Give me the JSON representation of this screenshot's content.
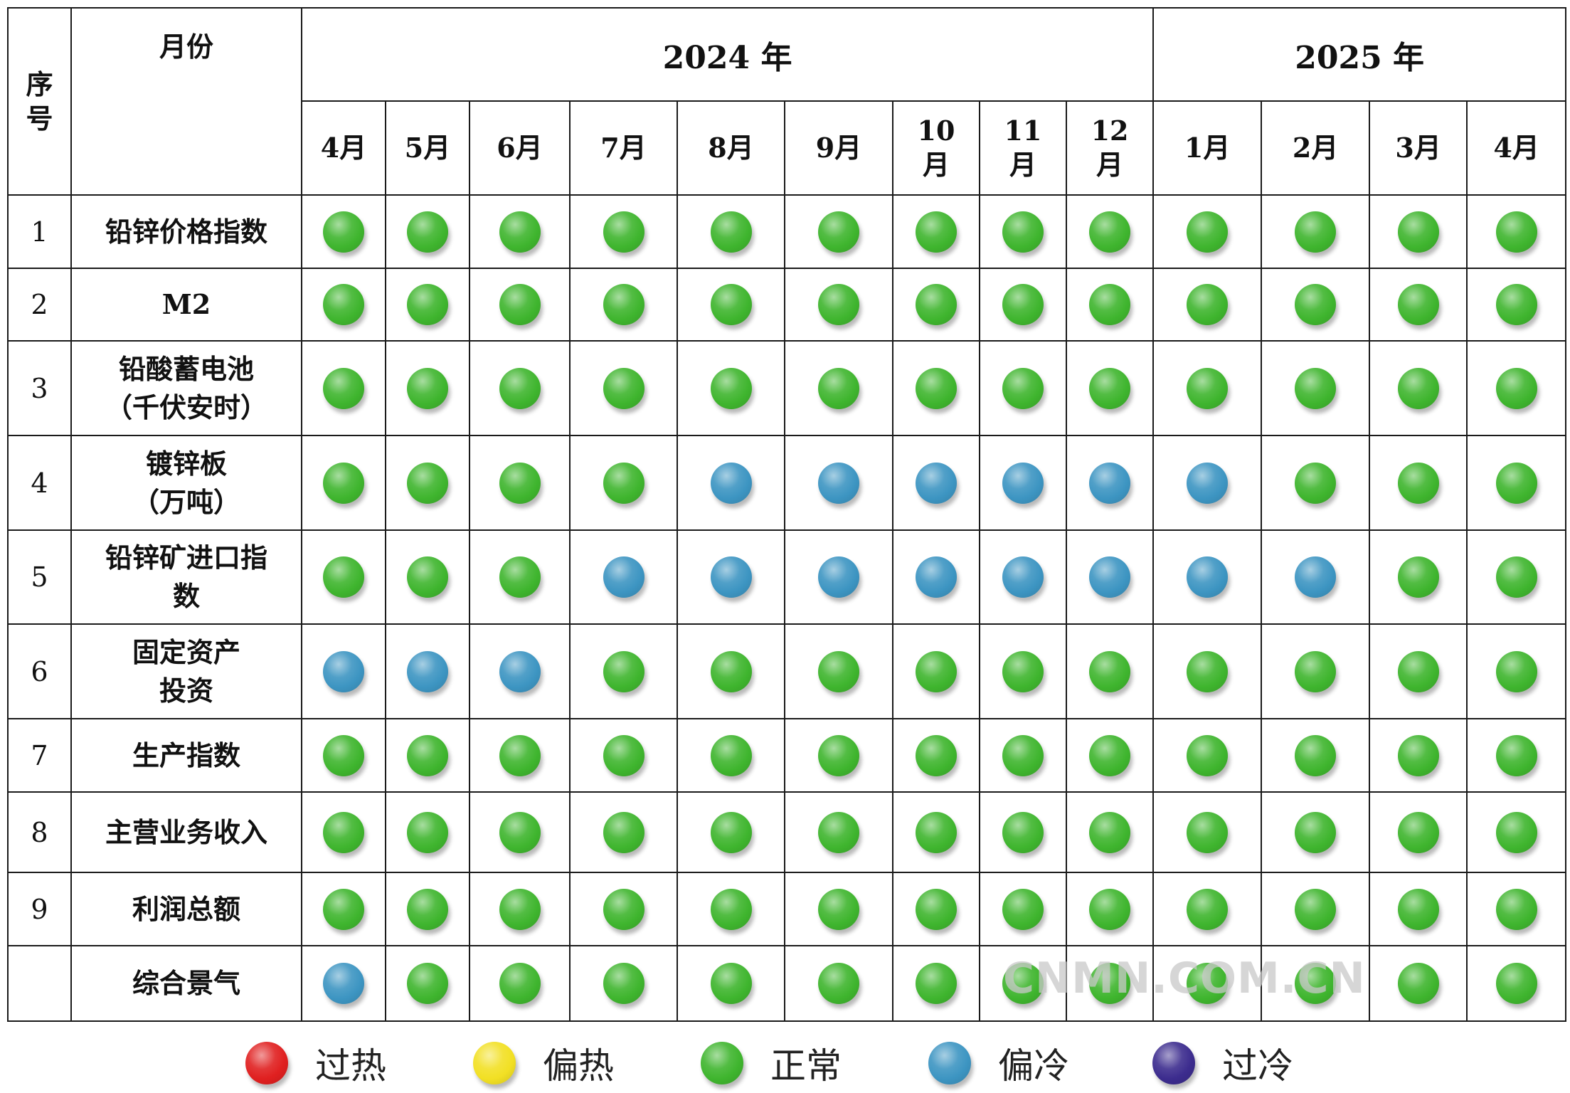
{
  "header": {
    "seq_label": "序号",
    "month_label": "月份",
    "years": [
      {
        "label": "2024 年",
        "span": 9
      },
      {
        "label": "2025 年",
        "span": 4
      }
    ],
    "months": [
      "4月",
      "5月",
      "6月",
      "7月",
      "8月",
      "9月",
      "10月",
      "11月",
      "12月",
      "1月",
      "2月",
      "3月",
      "4月"
    ]
  },
  "status_colors": {
    "过热": "#e02020",
    "偏热": "#f2e024",
    "正常": "#3fb52e",
    "偏冷": "#3d95c2",
    "过冷": "#3c2c8e"
  },
  "legend": [
    {
      "label": "过热",
      "key": "过热"
    },
    {
      "label": "偏热",
      "key": "偏热"
    },
    {
      "label": "正常",
      "key": "正常"
    },
    {
      "label": "偏冷",
      "key": "偏冷"
    },
    {
      "label": "过冷",
      "key": "过冷"
    }
  ],
  "watermark": "CNMN.COM.CN",
  "chart_data": {
    "type": "table",
    "columns": [
      "2024-04",
      "2024-05",
      "2024-06",
      "2024-07",
      "2024-08",
      "2024-09",
      "2024-10",
      "2024-11",
      "2024-12",
      "2025-01",
      "2025-02",
      "2025-03",
      "2025-04"
    ],
    "rows": [
      {
        "seq": "1",
        "name": "铅锌价格指数",
        "values": [
          "正常",
          "正常",
          "正常",
          "正常",
          "正常",
          "正常",
          "正常",
          "正常",
          "正常",
          "正常",
          "正常",
          "正常",
          "正常"
        ]
      },
      {
        "seq": "2",
        "name": "M2",
        "values": [
          "正常",
          "正常",
          "正常",
          "正常",
          "正常",
          "正常",
          "正常",
          "正常",
          "正常",
          "正常",
          "正常",
          "正常",
          "正常"
        ]
      },
      {
        "seq": "3",
        "name": "铅酸蓄电池\n（千伏安时）",
        "values": [
          "正常",
          "正常",
          "正常",
          "正常",
          "正常",
          "正常",
          "正常",
          "正常",
          "正常",
          "正常",
          "正常",
          "正常",
          "正常"
        ]
      },
      {
        "seq": "4",
        "name": "镀锌板\n（万吨）",
        "values": [
          "正常",
          "正常",
          "正常",
          "正常",
          "偏冷",
          "偏冷",
          "偏冷",
          "偏冷",
          "偏冷",
          "偏冷",
          "正常",
          "正常",
          "正常"
        ]
      },
      {
        "seq": "5",
        "name": "铅锌矿进口指\n数",
        "values": [
          "正常",
          "正常",
          "正常",
          "偏冷",
          "偏冷",
          "偏冷",
          "偏冷",
          "偏冷",
          "偏冷",
          "偏冷",
          "偏冷",
          "正常",
          "正常"
        ]
      },
      {
        "seq": "6",
        "name": "固定资产\n投资",
        "values": [
          "偏冷",
          "偏冷",
          "偏冷",
          "正常",
          "正常",
          "正常",
          "正常",
          "正常",
          "正常",
          "正常",
          "正常",
          "正常",
          "正常"
        ]
      },
      {
        "seq": "7",
        "name": "生产指数",
        "values": [
          "正常",
          "正常",
          "正常",
          "正常",
          "正常",
          "正常",
          "正常",
          "正常",
          "正常",
          "正常",
          "正常",
          "正常",
          "正常"
        ]
      },
      {
        "seq": "8",
        "name": "主营业务收入",
        "values": [
          "正常",
          "正常",
          "正常",
          "正常",
          "正常",
          "正常",
          "正常",
          "正常",
          "正常",
          "正常",
          "正常",
          "正常",
          "正常"
        ]
      },
      {
        "seq": "9",
        "name": "利润总额",
        "values": [
          "正常",
          "正常",
          "正常",
          "正常",
          "正常",
          "正常",
          "正常",
          "正常",
          "正常",
          "正常",
          "正常",
          "正常",
          "正常"
        ]
      },
      {
        "seq": "",
        "name": "综合景气",
        "values": [
          "偏冷",
          "正常",
          "正常",
          "正常",
          "正常",
          "正常",
          "正常",
          "正常",
          "正常",
          "正常",
          "正常",
          "正常",
          "正常"
        ]
      }
    ]
  }
}
